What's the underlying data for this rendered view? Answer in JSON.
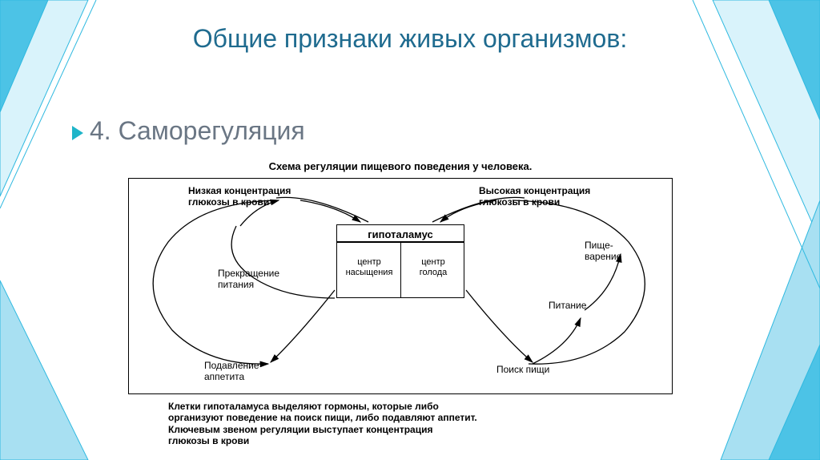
{
  "slide": {
    "title": "Общие признаки живых организмов:",
    "title_color": "#1f6b8f",
    "subtitle_number": "4.",
    "subtitle_text": "Саморегуляция",
    "subtitle_color": "#6a7684",
    "bullet_color": "#1fb5c9",
    "background": "#ffffff",
    "shape_stroke": "#2fb9e0",
    "shape_fill_light": "#d9f3fb",
    "shape_fill_mid": "#a8e0f2",
    "shape_fill_dark": "#4cc3e6"
  },
  "diagram": {
    "title": "Схема регуляции пищевого поведения у человека.",
    "hypothalamus": "гипоталамус",
    "center_satiety": "центр\nнасыщения",
    "center_hunger": "центр\nголода",
    "labels": {
      "low_glucose": "Низкая концентрация\nглюкозы в крови",
      "high_glucose": "Высокая концентрация\nглюкозы в крови",
      "stop_eating": "Прекращение\nпитания",
      "digestion": "Пище-\nварение",
      "nutrition": "Питание",
      "suppress_appetite": "Подавление\nаппетита",
      "food_search": "Поиск пищи"
    },
    "caption": "Клетки гипоталамуса выделяют гормоны, которые либо\nорганизуют  поведение на поиск пищи, либо подавляют аппетит.\nКлючевым звеном регуляции выступает концентрация\nглюкозы в крови",
    "stroke_color": "#000000",
    "text_color": "#000000",
    "arrow_width": 1.3
  }
}
